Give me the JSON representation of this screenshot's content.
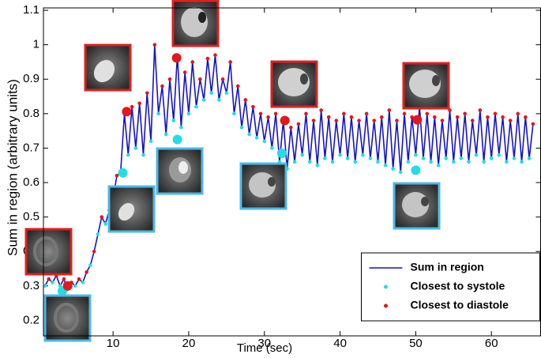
{
  "chart_data": {
    "type": "line",
    "xlabel": "Time (sec)",
    "ylabel": "Sum in region (arbitrary units)",
    "xlim": [
      0.8,
      66.5
    ],
    "ylim": [
      0.155,
      1.107
    ],
    "xticks": [
      10,
      20,
      30,
      40,
      50,
      60
    ],
    "yticks": [
      0.2,
      0.3,
      0.4,
      0.5,
      0.6,
      0.7,
      0.8,
      0.9,
      1,
      1.1
    ],
    "legend": "lower right",
    "series": [
      {
        "name": "Sum in region",
        "color": "#1414c8",
        "style": "line",
        "x": [
          1,
          1.5,
          2,
          2.5,
          3,
          3.5,
          4,
          4.5,
          5,
          5.5,
          6,
          6.5,
          7,
          7.5,
          8,
          8.5,
          9,
          9.5,
          10,
          10.5,
          11,
          11.5,
          12,
          12.5,
          13,
          13.5,
          14,
          14.5,
          15,
          15.5,
          16,
          16.5,
          17,
          17.5,
          18,
          18.5,
          19,
          19.5,
          20,
          20.5,
          21,
          21.5,
          22,
          22.5,
          23,
          23.5,
          24,
          24.5,
          25,
          25.5,
          26,
          26.5,
          27,
          27.5,
          28,
          28.5,
          29,
          29.5,
          30,
          30.5,
          31,
          31.5,
          32,
          32.5,
          33,
          33.5,
          34,
          34.5,
          35,
          35.5,
          36,
          36.5,
          37,
          37.5,
          38,
          38.5,
          39,
          39.5,
          40,
          40.5,
          41,
          41.5,
          42,
          42.5,
          43,
          43.5,
          44,
          44.5,
          45,
          45.5,
          46,
          46.5,
          47,
          47.5,
          48,
          48.5,
          49,
          49.5,
          50,
          50.5,
          51,
          51.5,
          52,
          52.5,
          53,
          53.5,
          54,
          54.5,
          55,
          55.5,
          56,
          56.5,
          57,
          57.5,
          58,
          58.5,
          59,
          59.5,
          60,
          60.5,
          61,
          61.5,
          62,
          62.5,
          63,
          63.5,
          64,
          64.5,
          65,
          65.5
        ],
        "values": [
          0.3,
          0.32,
          0.31,
          0.33,
          0.3,
          0.32,
          0.29,
          0.31,
          0.3,
          0.32,
          0.31,
          0.34,
          0.36,
          0.4,
          0.45,
          0.5,
          0.48,
          0.52,
          0.55,
          0.62,
          0.63,
          0.8,
          0.68,
          0.82,
          0.7,
          0.83,
          0.68,
          0.86,
          0.72,
          1.0,
          0.8,
          0.88,
          0.74,
          0.9,
          0.78,
          0.97,
          0.76,
          0.92,
          0.8,
          0.95,
          0.82,
          0.9,
          0.84,
          0.96,
          0.86,
          0.97,
          0.84,
          0.9,
          0.86,
          0.95,
          0.8,
          0.88,
          0.76,
          0.84,
          0.74,
          0.82,
          0.73,
          0.8,
          0.72,
          0.79,
          0.7,
          0.8,
          0.66,
          0.78,
          0.64,
          0.76,
          0.66,
          0.77,
          0.68,
          0.8,
          0.66,
          0.78,
          0.65,
          0.81,
          0.67,
          0.79,
          0.66,
          0.78,
          0.68,
          0.8,
          0.67,
          0.79,
          0.66,
          0.78,
          0.68,
          0.8,
          0.67,
          0.78,
          0.66,
          0.79,
          0.65,
          0.81,
          0.64,
          0.78,
          0.63,
          0.8,
          0.66,
          0.79,
          0.68,
          0.82,
          0.67,
          0.8,
          0.66,
          0.79,
          0.65,
          0.78,
          0.67,
          0.81,
          0.66,
          0.79,
          0.67,
          0.8,
          0.66,
          0.78,
          0.68,
          0.81,
          0.66,
          0.79,
          0.67,
          0.8,
          0.68,
          0.79,
          0.66,
          0.78,
          0.67,
          0.8,
          0.66,
          0.79,
          0.67,
          0.77
        ]
      },
      {
        "name": "Closest to systole",
        "color": "#22dde6",
        "style": "marker",
        "x": [
          1,
          2,
          3,
          4,
          5,
          6,
          7,
          8,
          9,
          10,
          11,
          12,
          13,
          14,
          15,
          16,
          17,
          18,
          19,
          20,
          21,
          22,
          23,
          24,
          25,
          26,
          27,
          28,
          29,
          30,
          31,
          32,
          33,
          34,
          35,
          36,
          37,
          38,
          39,
          40,
          41,
          42,
          43,
          44,
          45,
          46,
          47,
          48,
          49,
          50,
          51,
          52,
          53,
          54,
          55,
          56,
          57,
          58,
          59,
          60,
          61,
          62,
          63,
          64,
          65
        ],
        "values": [
          0.3,
          0.31,
          0.3,
          0.29,
          0.3,
          0.31,
          0.36,
          0.45,
          0.48,
          0.55,
          0.63,
          0.68,
          0.7,
          0.68,
          0.72,
          0.8,
          0.74,
          0.78,
          0.76,
          0.8,
          0.82,
          0.84,
          0.86,
          0.84,
          0.86,
          0.8,
          0.76,
          0.74,
          0.73,
          0.72,
          0.7,
          0.66,
          0.64,
          0.66,
          0.68,
          0.66,
          0.65,
          0.67,
          0.66,
          0.68,
          0.67,
          0.66,
          0.68,
          0.67,
          0.66,
          0.65,
          0.64,
          0.63,
          0.66,
          0.68,
          0.67,
          0.66,
          0.65,
          0.67,
          0.66,
          0.67,
          0.66,
          0.68,
          0.66,
          0.67,
          0.68,
          0.66,
          0.67,
          0.66,
          0.67
        ],
        "highlight_x": [
          3.3,
          11.3,
          18.5,
          32.3,
          50
        ],
        "highlight_values": [
          0.285,
          0.628,
          0.725,
          0.685,
          0.636
        ]
      },
      {
        "name": "Closest to diastole",
        "color": "#e3171c",
        "style": "marker",
        "x": [
          1.5,
          2.5,
          3.5,
          4.5,
          5.5,
          6.5,
          7.5,
          8.5,
          9.5,
          10.5,
          11.5,
          12.5,
          13.5,
          14.5,
          15.5,
          16.5,
          17.5,
          18.5,
          19.5,
          20.5,
          21.5,
          22.5,
          23.5,
          24.5,
          25.5,
          26.5,
          27.5,
          28.5,
          29.5,
          30.5,
          31.5,
          32.5,
          33.5,
          34.5,
          35.5,
          36.5,
          37.5,
          38.5,
          39.5,
          40.5,
          41.5,
          42.5,
          43.5,
          44.5,
          45.5,
          46.5,
          47.5,
          48.5,
          49.5,
          50.5,
          51.5,
          52.5,
          53.5,
          54.5,
          55.5,
          56.5,
          57.5,
          58.5,
          59.5,
          60.5,
          61.5,
          62.5,
          63.5,
          64.5,
          65.5
        ],
        "values": [
          0.32,
          0.33,
          0.32,
          0.31,
          0.32,
          0.34,
          0.4,
          0.5,
          0.52,
          0.62,
          0.8,
          0.82,
          0.83,
          0.86,
          1.0,
          0.88,
          0.9,
          0.97,
          0.92,
          0.95,
          0.9,
          0.96,
          0.97,
          0.9,
          0.95,
          0.88,
          0.84,
          0.82,
          0.8,
          0.79,
          0.8,
          0.78,
          0.76,
          0.77,
          0.8,
          0.78,
          0.81,
          0.79,
          0.78,
          0.8,
          0.79,
          0.78,
          0.8,
          0.78,
          0.79,
          0.81,
          0.78,
          0.8,
          0.79,
          0.82,
          0.8,
          0.79,
          0.78,
          0.81,
          0.79,
          0.8,
          0.78,
          0.81,
          0.79,
          0.8,
          0.79,
          0.78,
          0.8,
          0.79,
          0.77
        ],
        "highlight_x": [
          4,
          11.8,
          18.4,
          32.7,
          50.2
        ],
        "highlight_values": [
          0.3,
          0.806,
          0.962,
          0.78,
          0.782
        ]
      }
    ]
  }
}
